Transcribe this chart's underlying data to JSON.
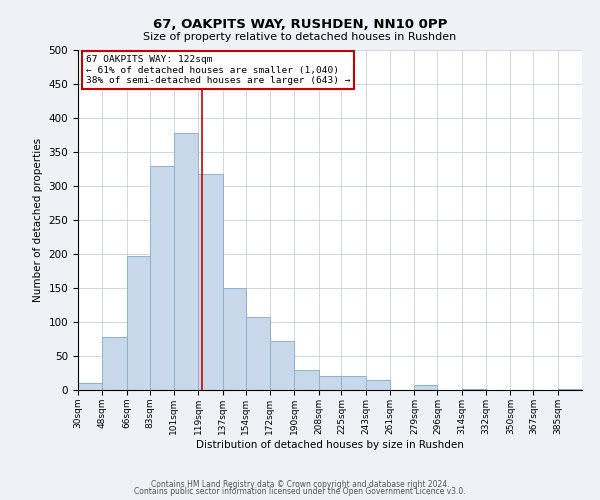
{
  "title": "67, OAKPITS WAY, RUSHDEN, NN10 0PP",
  "subtitle": "Size of property relative to detached houses in Rushden",
  "xlabel": "Distribution of detached houses by size in Rushden",
  "ylabel": "Number of detached properties",
  "bin_labels": [
    "30sqm",
    "48sqm",
    "66sqm",
    "83sqm",
    "101sqm",
    "119sqm",
    "137sqm",
    "154sqm",
    "172sqm",
    "190sqm",
    "208sqm",
    "225sqm",
    "243sqm",
    "261sqm",
    "279sqm",
    "296sqm",
    "314sqm",
    "332sqm",
    "350sqm",
    "367sqm",
    "385sqm"
  ],
  "bar_heights": [
    10,
    78,
    197,
    330,
    378,
    318,
    150,
    108,
    72,
    30,
    20,
    20,
    15,
    0,
    8,
    0,
    2,
    0,
    0,
    0,
    2
  ],
  "bar_color": "#c8d8ea",
  "bar_edge_color": "#8ab4cc",
  "property_line_x": 122,
  "bin_edges": [
    30,
    48,
    66,
    83,
    101,
    119,
    137,
    154,
    172,
    190,
    208,
    225,
    243,
    261,
    279,
    296,
    314,
    332,
    350,
    367,
    385,
    403
  ],
  "annotation_box_text": [
    "67 OAKPITS WAY: 122sqm",
    "← 61% of detached houses are smaller (1,040)",
    "38% of semi-detached houses are larger (643) →"
  ],
  "annotation_box_color": "#ffffff",
  "annotation_box_edge_color": "#cc0000",
  "vline_color": "#cc0000",
  "yticks": [
    0,
    50,
    100,
    150,
    200,
    250,
    300,
    350,
    400,
    450,
    500
  ],
  "ylim": [
    0,
    500
  ],
  "footer1": "Contains HM Land Registry data © Crown copyright and database right 2024.",
  "footer2": "Contains public sector information licensed under the Open Government Licence v3.0.",
  "background_color": "#eef2f6",
  "plot_bg_color": "#ffffff",
  "grid_color": "#c8d0dc"
}
